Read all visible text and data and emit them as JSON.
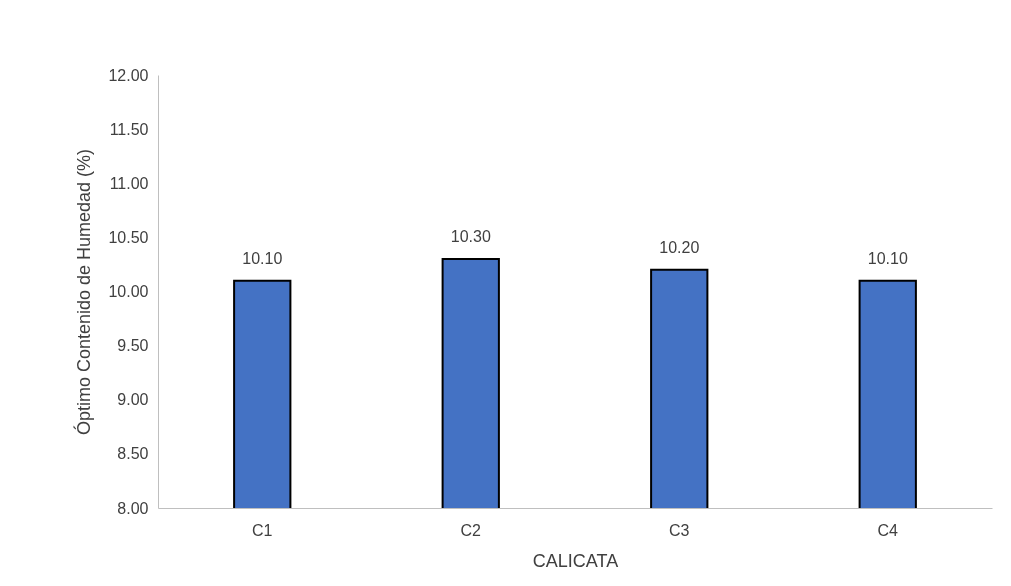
{
  "chart_data": {
    "type": "bar",
    "xlabel": "CALICATA",
    "ylabel": "Óptimo Contenido de Humedad (%)",
    "categories": [
      "C1",
      "C2",
      "C3",
      "C4"
    ],
    "values": [
      10.1,
      10.3,
      10.2,
      10.1
    ],
    "value_labels": [
      "10.10",
      "10.30",
      "10.20",
      "10.10"
    ],
    "color": "#4472c4",
    "ylim": [
      8,
      12
    ],
    "yticks": [
      {
        "value": 8,
        "label": "8.00"
      },
      {
        "value": 8.5,
        "label": "8.50"
      },
      {
        "value": 9,
        "label": "9.00"
      },
      {
        "value": 9.5,
        "label": "9.50"
      },
      {
        "value": 10,
        "label": "10.00"
      },
      {
        "value": 10.5,
        "label": "10.50"
      },
      {
        "value": 11,
        "label": "11.00"
      },
      {
        "value": 11.5,
        "label": "11.50"
      },
      {
        "value": 12,
        "label": "12.00"
      }
    ],
    "grid": false
  }
}
